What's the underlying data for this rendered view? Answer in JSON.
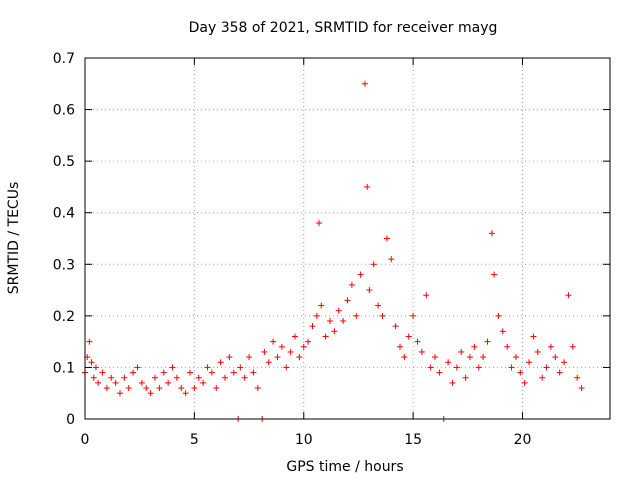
{
  "chart_data": {
    "type": "scatter",
    "title": "Day 358 of 2021, SRMTID for receiver mayg",
    "xlabel": "GPS time / hours",
    "ylabel": "SRMTID / TECUs",
    "xlim": [
      0,
      24
    ],
    "ylim": [
      0,
      0.7
    ],
    "xticks": [
      0,
      5,
      10,
      15,
      20
    ],
    "xtick_labels": [
      "0",
      "5",
      "10",
      "15",
      "20"
    ],
    "yticks": [
      0,
      0.1,
      0.2,
      0.3,
      0.4,
      0.5,
      0.6,
      0.7
    ],
    "ytick_labels": [
      "0",
      "0.1",
      "0.2",
      "0.3",
      "0.4",
      "0.5",
      "0.6",
      "0.7"
    ],
    "grid": true,
    "marker": "+",
    "color": "#ff0000",
    "series": [
      {
        "name": "SRMTID",
        "x": [
          0.0,
          0.1,
          0.2,
          0.3,
          0.4,
          0.5,
          0.6,
          0.8,
          1.0,
          1.2,
          1.4,
          1.6,
          1.8,
          2.0,
          2.2,
          2.4,
          2.6,
          2.8,
          3.0,
          3.2,
          3.4,
          3.6,
          3.8,
          4.0,
          4.2,
          4.4,
          4.6,
          4.8,
          5.0,
          5.2,
          5.4,
          5.6,
          5.8,
          6.0,
          6.2,
          6.4,
          6.6,
          6.8,
          7.0,
          7.1,
          7.3,
          7.5,
          7.7,
          7.9,
          8.1,
          8.2,
          8.4,
          8.6,
          8.8,
          9.0,
          9.2,
          9.4,
          9.6,
          9.8,
          10.0,
          10.2,
          10.4,
          10.6,
          10.7,
          10.8,
          11.0,
          11.2,
          11.4,
          11.6,
          11.8,
          12.0,
          12.2,
          12.4,
          12.6,
          12.8,
          12.9,
          13.0,
          13.2,
          13.4,
          13.6,
          13.8,
          14.0,
          14.2,
          14.4,
          14.6,
          14.8,
          15.0,
          15.2,
          15.4,
          15.6,
          15.8,
          16.0,
          16.2,
          16.4,
          16.6,
          16.8,
          17.0,
          17.2,
          17.4,
          17.6,
          17.8,
          18.0,
          18.2,
          18.4,
          18.6,
          18.7,
          18.9,
          19.1,
          19.3,
          19.5,
          19.7,
          19.9,
          20.1,
          20.3,
          20.5,
          20.7,
          20.9,
          21.1,
          21.3,
          21.5,
          21.7,
          21.9,
          22.1,
          22.3,
          22.5,
          22.7
        ],
        "y": [
          0.09,
          0.12,
          0.15,
          0.11,
          0.08,
          0.1,
          0.07,
          0.09,
          0.06,
          0.08,
          0.07,
          0.05,
          0.08,
          0.06,
          0.09,
          0.1,
          0.07,
          0.06,
          0.05,
          0.08,
          0.06,
          0.09,
          0.07,
          0.1,
          0.08,
          0.06,
          0.05,
          0.09,
          0.06,
          0.08,
          0.07,
          0.1,
          0.09,
          0.06,
          0.11,
          0.08,
          0.12,
          0.09,
          0.0,
          0.1,
          0.08,
          0.12,
          0.09,
          0.06,
          0.0,
          0.13,
          0.11,
          0.15,
          0.12,
          0.14,
          0.1,
          0.13,
          0.16,
          0.12,
          0.14,
          0.15,
          0.18,
          0.2,
          0.38,
          0.22,
          0.16,
          0.19,
          0.17,
          0.21,
          0.19,
          0.23,
          0.26,
          0.2,
          0.28,
          0.65,
          0.45,
          0.25,
          0.3,
          0.22,
          0.2,
          0.35,
          0.31,
          0.18,
          0.14,
          0.12,
          0.16,
          0.2,
          0.15,
          0.13,
          0.24,
          0.1,
          0.12,
          0.09,
          0.0,
          0.11,
          0.07,
          0.1,
          0.13,
          0.08,
          0.12,
          0.14,
          0.1,
          0.12,
          0.15,
          0.36,
          0.28,
          0.2,
          0.17,
          0.14,
          0.1,
          0.12,
          0.09,
          0.07,
          0.11,
          0.16,
          0.13,
          0.08,
          0.1,
          0.14,
          0.12,
          0.09,
          0.11,
          0.24,
          0.14,
          0.08,
          0.06
        ]
      }
    ]
  }
}
